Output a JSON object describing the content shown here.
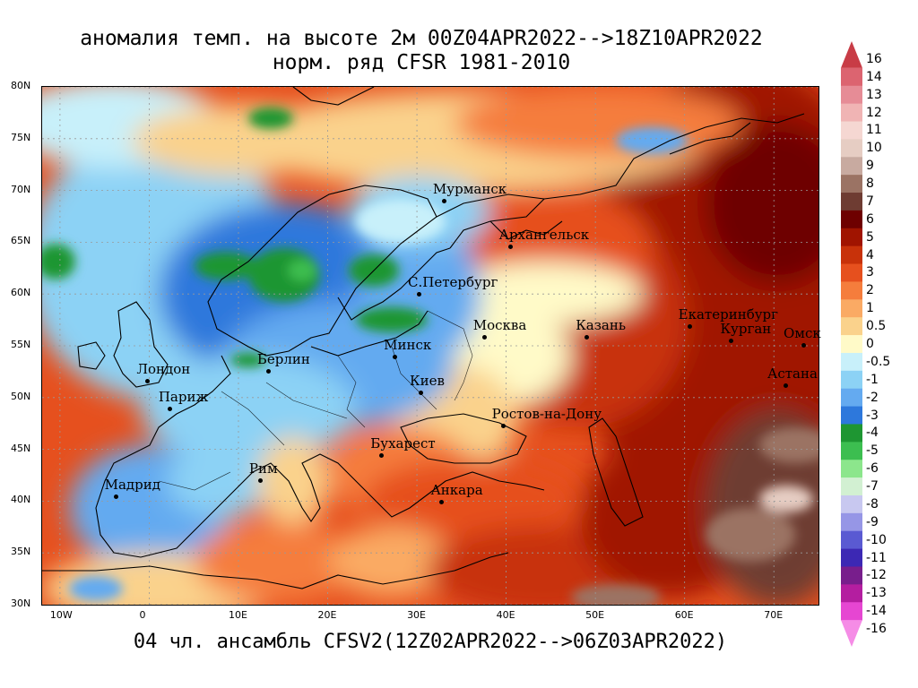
{
  "title": {
    "line1": "аномалия темп. на высоте 2м 00Z04APR2022-->18Z10APR2022",
    "line2": "норм. ряд CFSR 1981-2010"
  },
  "footer": "04 чл. ансамбль CFSV2(12Z02APR2022-->06Z03APR2022)",
  "map": {
    "lon_range": [
      -12,
      75
    ],
    "lat_range": [
      30,
      80
    ],
    "lat_ticks": [
      {
        "value": 80,
        "label": "80N"
      },
      {
        "value": 75,
        "label": "75N"
      },
      {
        "value": 70,
        "label": "70N"
      },
      {
        "value": 65,
        "label": "65N"
      },
      {
        "value": 60,
        "label": "60N"
      },
      {
        "value": 55,
        "label": "55N"
      },
      {
        "value": 50,
        "label": "50N"
      },
      {
        "value": 45,
        "label": "45N"
      },
      {
        "value": 40,
        "label": "40N"
      },
      {
        "value": 35,
        "label": "35N"
      },
      {
        "value": 30,
        "label": "30N"
      }
    ],
    "lon_ticks": [
      {
        "value": -10,
        "label": "10W"
      },
      {
        "value": 0,
        "label": "0"
      },
      {
        "value": 10,
        "label": "10E"
      },
      {
        "value": 20,
        "label": "20E"
      },
      {
        "value": 30,
        "label": "30E"
      },
      {
        "value": 40,
        "label": "40E"
      },
      {
        "value": 50,
        "label": "50E"
      },
      {
        "value": 60,
        "label": "60E"
      },
      {
        "value": 70,
        "label": "70E"
      }
    ],
    "cities": [
      {
        "name": "Мурманск",
        "lon": 33.1,
        "lat": 68.97
      },
      {
        "name": "Архангельск",
        "lon": 40.5,
        "lat": 64.5
      },
      {
        "name": "С.Петербург",
        "lon": 30.3,
        "lat": 59.9
      },
      {
        "name": "Москва",
        "lon": 37.6,
        "lat": 55.75
      },
      {
        "name": "Казань",
        "lon": 49.1,
        "lat": 55.8
      },
      {
        "name": "Екатеринбург",
        "lon": 60.6,
        "lat": 56.8
      },
      {
        "name": "Курган",
        "lon": 65.3,
        "lat": 55.4
      },
      {
        "name": "Омск",
        "lon": 73.4,
        "lat": 55.0
      },
      {
        "name": "Астана",
        "lon": 71.4,
        "lat": 51.1
      },
      {
        "name": "Минск",
        "lon": 27.6,
        "lat": 53.9
      },
      {
        "name": "Берлин",
        "lon": 13.4,
        "lat": 52.5
      },
      {
        "name": "Лондон",
        "lon": -0.1,
        "lat": 51.5
      },
      {
        "name": "Париж",
        "lon": 2.35,
        "lat": 48.85
      },
      {
        "name": "Киев",
        "lon": 30.5,
        "lat": 50.45
      },
      {
        "name": "Ростов-на-Дону",
        "lon": 39.7,
        "lat": 47.2
      },
      {
        "name": "Бухарест",
        "lon": 26.1,
        "lat": 44.4
      },
      {
        "name": "Рим",
        "lon": 12.5,
        "lat": 41.9
      },
      {
        "name": "Мадрид",
        "lon": -3.7,
        "lat": 40.4
      },
      {
        "name": "Анкара",
        "lon": 32.85,
        "lat": 39.9
      }
    ]
  },
  "colorbar": {
    "levels": [
      {
        "label": "16",
        "color": "#c83c46"
      },
      {
        "label": "14",
        "color": "#dc6470"
      },
      {
        "label": "13",
        "color": "#e68c96"
      },
      {
        "label": "12",
        "color": "#f0b4b4"
      },
      {
        "label": "11",
        "color": "#f5d7d2"
      },
      {
        "label": "10",
        "color": "#e6cdc3"
      },
      {
        "label": "9",
        "color": "#c8aaa0"
      },
      {
        "label": "8",
        "color": "#9b7364"
      },
      {
        "label": "7",
        "color": "#6e3c32"
      },
      {
        "label": "6",
        "color": "#6e0000"
      },
      {
        "label": "5",
        "color": "#a01400"
      },
      {
        "label": "4",
        "color": "#c8320a"
      },
      {
        "label": "3",
        "color": "#e6501e"
      },
      {
        "label": "2",
        "color": "#f57d3c"
      },
      {
        "label": "1",
        "color": "#faaa64"
      },
      {
        "label": "0.5",
        "color": "#fad28c"
      },
      {
        "label": "0",
        "color": "#fffac8"
      },
      {
        "label": "-0.5",
        "color": "#c8f0fa"
      },
      {
        "label": "-1",
        "color": "#8cd2f5"
      },
      {
        "label": "-2",
        "color": "#64aaf0"
      },
      {
        "label": "-3",
        "color": "#2d78dc"
      },
      {
        "label": "-4",
        "color": "#1e9632"
      },
      {
        "label": "-5",
        "color": "#3cbe50"
      },
      {
        "label": "-6",
        "color": "#8ce68c"
      },
      {
        "label": "-7",
        "color": "#d2f0d2"
      },
      {
        "label": "-8",
        "color": "#c8c8f0"
      },
      {
        "label": "-9",
        "color": "#9696e6"
      },
      {
        "label": "-10",
        "color": "#5a5ad2"
      },
      {
        "label": "-11",
        "color": "#3c28b4"
      },
      {
        "label": "-12",
        "color": "#781e8c"
      },
      {
        "label": "-13",
        "color": "#b41ea0"
      },
      {
        "label": "-14",
        "color": "#e646d2"
      },
      {
        "label": "-16",
        "color": "#f58ce6"
      }
    ]
  }
}
